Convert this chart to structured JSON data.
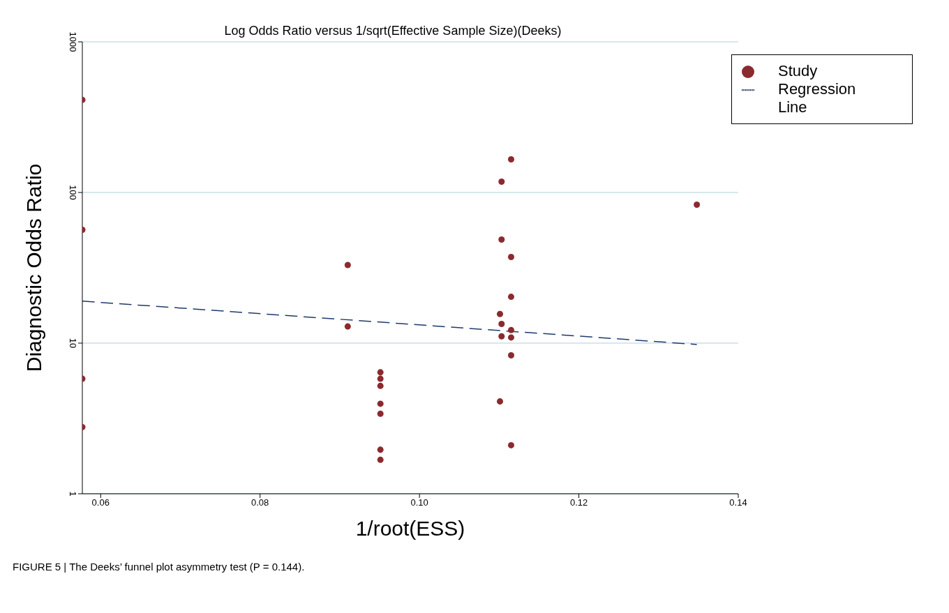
{
  "chart_data": {
    "type": "scatter",
    "title": "Log Odds Ratio versus 1/sqrt(Effective Sample Size)(Deeks)",
    "xlabel": "1/root(ESS)",
    "ylabel": "Diagnostic Odds Ratio",
    "series": [
      {
        "name": "Study",
        "color": "#8b2a2e",
        "marker": "circle",
        "x": [
          0.0577,
          0.0577,
          0.0577,
          0.0577,
          0.091,
          0.091,
          0.0951,
          0.0951,
          0.0951,
          0.0951,
          0.0951,
          0.0951,
          0.0951,
          0.1115,
          0.1103,
          0.1348,
          0.1103,
          0.1115,
          0.1115,
          0.1101,
          0.1103,
          0.1115,
          0.1103,
          0.1115,
          0.1115,
          0.1101,
          0.1115
        ],
        "values": [
          412,
          56.5,
          5.8,
          2.77,
          33,
          12.9,
          6.4,
          5.8,
          5.2,
          3.96,
          3.4,
          1.96,
          1.68,
          166,
          118,
          83,
          48.7,
          37.3,
          20.3,
          15.6,
          13.4,
          12.2,
          11.1,
          10.9,
          8.3,
          4.1,
          2.1
        ]
      },
      {
        "name": "Regression Line",
        "type": "line",
        "color": "#1f3a6b",
        "marker": "none",
        "line_style": "dashed",
        "x": [
          0.0577,
          0.1348
        ],
        "values": [
          19,
          9.8
        ]
      }
    ],
    "xlim": [
      0.0577,
      0.14
    ],
    "xticks": [
      0.06,
      0.08,
      {
        "value": 0.1,
        "label": "0.10"
      },
      0.12,
      0.14
    ],
    "ylim": [
      1,
      1000
    ],
    "yticks": [
      1,
      10,
      100,
      1000
    ],
    "log": "y",
    "grid": "y",
    "legend": "top right",
    "annotations": [
      "FIGURE 5 | The Deeks’ funnel plot asymmetry test (P = 0.144)."
    ]
  }
}
